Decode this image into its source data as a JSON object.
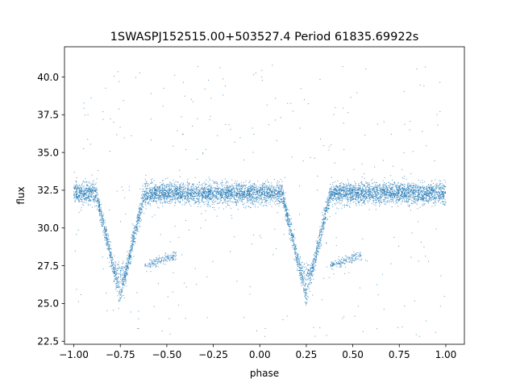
{
  "chart_data": {
    "type": "scatter",
    "title": "1SWASPJ152515.00+503527.4 Period 61835.69922s",
    "xlabel": "phase",
    "ylabel": "flux",
    "xlim": [
      -1.05,
      1.1
    ],
    "ylim": [
      22.3,
      42.0
    ],
    "grid": false,
    "legend": "none",
    "x_ticks": [
      -1.0,
      -0.75,
      -0.5,
      -0.25,
      0.0,
      0.25,
      0.5,
      0.75,
      1.0
    ],
    "x_tick_labels": [
      "−1.00",
      "−0.75",
      "−0.50",
      "−0.25",
      "0.00",
      "0.25",
      "0.50",
      "0.75",
      "1.00"
    ],
    "y_ticks": [
      22.5,
      25.0,
      27.5,
      30.0,
      32.5,
      35.0,
      37.5,
      40.0
    ],
    "y_tick_labels": [
      "22.5",
      "25.0",
      "27.5",
      "30.0",
      "32.5",
      "35.0",
      "37.5",
      "40.0"
    ],
    "series": [
      {
        "color": "#1f77b4",
        "phase_range": [
          -1.0,
          1.0
        ],
        "baseline_flux": 32.3,
        "baseline_scatter": 0.35,
        "primary_eclipse_phases": [
          -0.75,
          0.25
        ],
        "primary_eclipse_min_flux": 25.5,
        "eclipse_inner_floor_flux": 27.0,
        "eclipse_half_width_phase": 0.13,
        "secondary_branch": {
          "phase_start_offset": 0.13,
          "phase_end_offset": 0.3,
          "flux_start": 27.5,
          "flux_end": 28.2
        },
        "outlier_flux_range": [
          22.8,
          40.9
        ]
      }
    ]
  }
}
